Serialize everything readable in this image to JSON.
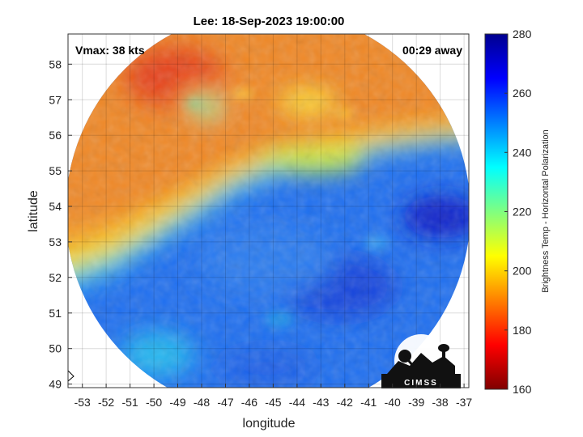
{
  "chart_data": {
    "type": "heatmap",
    "title": "Lee: 18-Sep-2023 19:00:00",
    "xlabel": "longitude",
    "ylabel": "latitude",
    "xlim": [
      -53.6,
      -36.8
    ],
    "ylim": [
      48.9,
      58.85
    ],
    "x_ticks": [
      -53,
      -52,
      -51,
      -50,
      -49,
      -48,
      -47,
      -46,
      -45,
      -44,
      -43,
      -42,
      -41,
      -40,
      -39,
      -38,
      -37
    ],
    "y_ticks": [
      49,
      50,
      51,
      52,
      53,
      54,
      55,
      56,
      57,
      58
    ],
    "grid": true,
    "annotations": {
      "vmax": "Vmax: 38 kts",
      "time_offset": "00:29 away"
    },
    "colorbar": {
      "label": "Brightness Temp - Horizontal Polarization",
      "range": [
        160,
        280
      ],
      "ticks": [
        160,
        180,
        200,
        220,
        240,
        260,
        280
      ],
      "colormap": "jet"
    },
    "swath": {
      "center_lon": -45.2,
      "center_lat": 53.85,
      "shape": "circular"
    },
    "field_regions": [
      {
        "region": "north / northwest",
        "approx_value": 185,
        "color_name": "orange-red"
      },
      {
        "region": "center band (approx. 54-55N)",
        "approx_value": 215,
        "color_name": "yellow-green"
      },
      {
        "region": "south / southeast",
        "approx_value": 255,
        "color_name": "blue"
      },
      {
        "region": "east edge near 53N",
        "approx_value": 270,
        "color_name": "dark blue"
      }
    ],
    "logo": "CIMSS"
  }
}
